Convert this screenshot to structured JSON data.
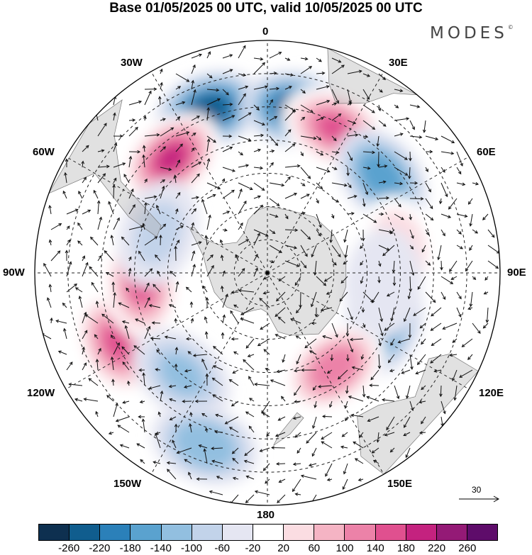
{
  "title": "Base 01/05/2025 00 UTC, valid 10/05/2025 00 UTC",
  "brand": "MODES",
  "brand_mark": "©",
  "longitude_labels": {
    "top": "0",
    "bottom": "180",
    "left": "90W",
    "right": "90E",
    "nw30": "30W",
    "nw60": "60W",
    "ne30": "30E",
    "ne60": "60E",
    "sw120": "120W",
    "sw150": "150W",
    "se120": "120E",
    "se150": "150E"
  },
  "vector_reference": "30",
  "colorbar": {
    "colors": [
      "#0e3050",
      "#105d8e",
      "#2b80b9",
      "#5aa2cf",
      "#92bfe0",
      "#c2d3ea",
      "#e5e6f2",
      "#ffffff",
      "#fbdde2",
      "#f5b4c4",
      "#ec82a8",
      "#e0508f",
      "#c4227f",
      "#941a76",
      "#5e0c6a"
    ],
    "ticks": [
      "-260",
      "-220",
      "-180",
      "-140",
      "-100",
      "-60",
      "-20",
      "20",
      "60",
      "100",
      "140",
      "180",
      "220",
      "260"
    ]
  },
  "anomaly_centers": [
    {
      "lon": -20,
      "lat": -38,
      "value": -240
    },
    {
      "lon": 10,
      "lat": -40,
      "value": -260
    },
    {
      "lon": -40,
      "lat": -45,
      "value": 220
    },
    {
      "lon": 25,
      "lat": -42,
      "value": 170
    },
    {
      "lon": 50,
      "lat": -45,
      "value": -150
    },
    {
      "lon": 80,
      "lat": -50,
      "value": 80
    },
    {
      "lon": 115,
      "lat": -52,
      "value": -150
    },
    {
      "lon": 145,
      "lat": -55,
      "value": 150
    },
    {
      "lon": -115,
      "lat": -40,
      "value": 170
    },
    {
      "lon": -95,
      "lat": -52,
      "value": 170
    },
    {
      "lon": -140,
      "lat": -50,
      "value": -100
    },
    {
      "lon": -160,
      "lat": -35,
      "value": -120
    },
    {
      "lon": -70,
      "lat": -55,
      "value": -60
    },
    {
      "lon": 95,
      "lat": -55,
      "value": -40
    }
  ]
}
